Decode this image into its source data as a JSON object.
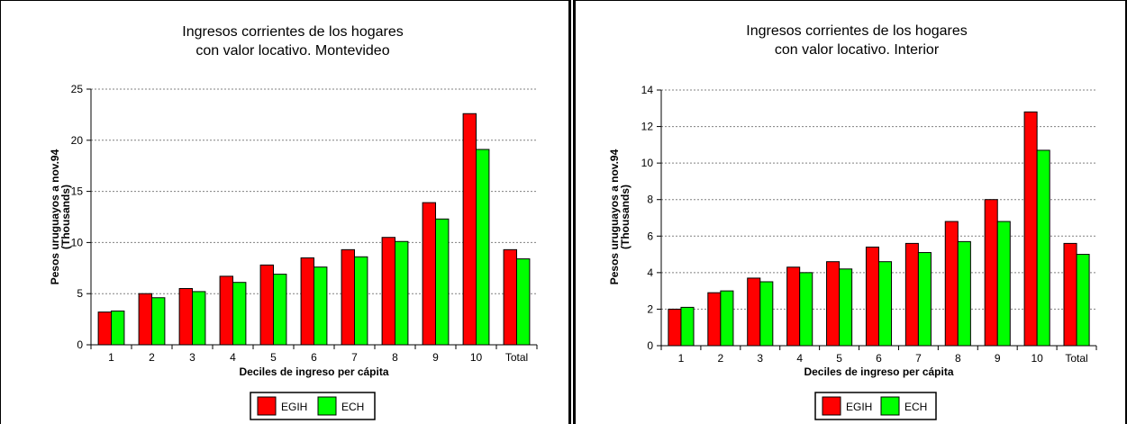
{
  "colors": {
    "egih": "#ff0000",
    "ech": "#00ff00",
    "grid": "#808080",
    "axis": "#000000"
  },
  "chart_data": [
    {
      "type": "bar",
      "title": [
        "Ingresos corrientes de los hogares",
        "con valor locativo. Montevideo"
      ],
      "xlabel": "Deciles de ingreso per cápita",
      "ylabel": [
        "Pesos uruguayos a nov.94",
        "(Thousands)"
      ],
      "categories": [
        "1",
        "2",
        "3",
        "4",
        "5",
        "6",
        "7",
        "8",
        "9",
        "10",
        "Total"
      ],
      "ylim": [
        0,
        25
      ],
      "yticks": [
        0,
        5,
        10,
        15,
        20,
        25
      ],
      "grid": true,
      "legend": "bottom",
      "series": [
        {
          "name": "EGIH",
          "values": [
            3.2,
            5.0,
            5.5,
            6.7,
            7.8,
            8.5,
            9.3,
            10.5,
            13.9,
            22.6,
            9.3
          ]
        },
        {
          "name": "ECH",
          "values": [
            3.3,
            4.6,
            5.2,
            6.1,
            6.9,
            7.6,
            8.6,
            10.1,
            12.3,
            19.1,
            8.4
          ]
        }
      ]
    },
    {
      "type": "bar",
      "title": [
        "Ingresos corrientes de los hogares",
        "con valor locativo. Interior"
      ],
      "xlabel": "Deciles de ingreso per cápita",
      "ylabel": [
        "Pesos uruguayos a nov.94",
        "(Thousands)"
      ],
      "categories": [
        "1",
        "2",
        "3",
        "4",
        "5",
        "6",
        "7",
        "8",
        "9",
        "10",
        "Total"
      ],
      "ylim": [
        0,
        14
      ],
      "yticks": [
        0,
        2,
        4,
        6,
        8,
        10,
        12,
        14
      ],
      "grid": true,
      "legend": "bottom",
      "series": [
        {
          "name": "EGIH",
          "values": [
            2.0,
            2.9,
            3.7,
            4.3,
            4.6,
            5.4,
            5.6,
            6.8,
            8.0,
            12.8,
            5.6
          ]
        },
        {
          "name": "ECH",
          "values": [
            2.1,
            3.0,
            3.5,
            4.0,
            4.2,
            4.6,
            5.1,
            5.7,
            6.8,
            10.7,
            5.0
          ]
        }
      ]
    }
  ]
}
